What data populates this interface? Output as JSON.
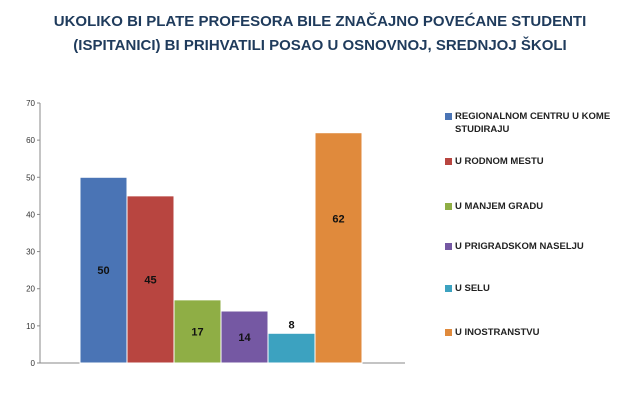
{
  "chart_data": {
    "type": "bar",
    "title": "UKOLIKO BI PLATE PROFESORA BILE ZNAČAJNO POVEĆANE STUDENTI (ISPITANICI) BI PRIHVATILI POSAO U OSNOVNOJ, SREDNJOJ ŠKOLI",
    "xlabel": "",
    "ylabel": "",
    "ylim": [
      0,
      70
    ],
    "yticks": [
      "0",
      "10",
      "20",
      "30",
      "40",
      "50",
      "60",
      "70"
    ],
    "grid": false,
    "legend_position": "right",
    "series": [
      {
        "name": "REGIONALNOM CENTRU U KOME STUDIRAJU",
        "value": 50,
        "label": "50",
        "color": "#4a74b5"
      },
      {
        "name": "U RODNOM MESTU",
        "value": 45,
        "label": "45",
        "color": "#b84540"
      },
      {
        "name": "U MANJEM GRADU",
        "value": 17,
        "label": "17",
        "color": "#8fae45"
      },
      {
        "name": "U PRIGRADSKOM NASELJU",
        "value": 14,
        "label": "14",
        "color": "#7558a3"
      },
      {
        "name": "U SELU",
        "value": 8,
        "label": "8",
        "color": "#3ca2c0"
      },
      {
        "name": "U INOSTRANSTVU",
        "value": 62,
        "label": "62",
        "color": "#e08a3c"
      }
    ]
  }
}
